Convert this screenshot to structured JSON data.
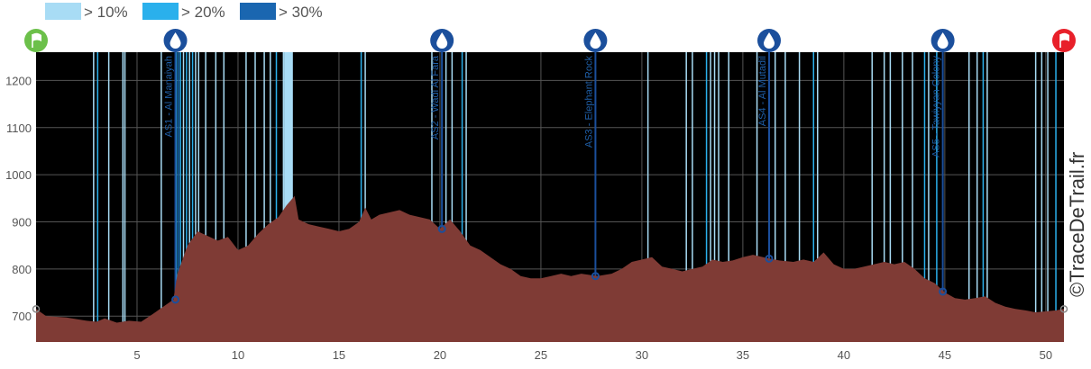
{
  "copyright": "©TraceDeTrail.fr",
  "colors": {
    "background": "#000000",
    "profile_fill": "#7f3b35",
    "steep_10": "#a8dcf5",
    "steep_20": "#2ab0ec",
    "steep_30": "#1a66b0",
    "marker_blue": "#1b4f9c",
    "start_flag": "#6cc04a",
    "finish_flag": "#e8202a",
    "grid": "#555555",
    "axis_text": "#555555"
  },
  "legend": [
    {
      "label": "> 10%",
      "color": "#a8dcf5"
    },
    {
      "label": "> 20%",
      "color": "#2ab0ec"
    },
    {
      "label": "> 30%",
      "color": "#1a66b0"
    }
  ],
  "chart_data": {
    "type": "area",
    "xlim": [
      0,
      50.9
    ],
    "ylim": [
      645,
      1260
    ],
    "x_ticks": [
      5,
      10,
      15,
      20,
      25,
      30,
      35,
      40,
      45,
      50
    ],
    "y_ticks": [
      700,
      800,
      900,
      1000,
      1100,
      1200
    ],
    "grid": true,
    "legend_position": "top-left",
    "profile": [
      [
        0,
        715
      ],
      [
        0.5,
        700
      ],
      [
        1.5,
        697
      ],
      [
        2.5,
        690
      ],
      [
        3,
        688
      ],
      [
        3.4,
        695
      ],
      [
        4,
        686
      ],
      [
        4.6,
        690
      ],
      [
        5.2,
        688
      ],
      [
        5.8,
        705
      ],
      [
        6.3,
        720
      ],
      [
        6.8,
        735
      ],
      [
        7.0,
        790
      ],
      [
        7.5,
        850
      ],
      [
        8.0,
        880
      ],
      [
        8.5,
        870
      ],
      [
        9.0,
        860
      ],
      [
        9.5,
        868
      ],
      [
        10.0,
        840
      ],
      [
        10.5,
        850
      ],
      [
        11.0,
        875
      ],
      [
        11.5,
        895
      ],
      [
        12.0,
        910
      ],
      [
        12.4,
        935
      ],
      [
        12.8,
        955
      ],
      [
        13.0,
        905
      ],
      [
        13.5,
        895
      ],
      [
        14.0,
        890
      ],
      [
        14.5,
        885
      ],
      [
        15.0,
        880
      ],
      [
        15.5,
        885
      ],
      [
        16.0,
        900
      ],
      [
        16.3,
        930
      ],
      [
        16.6,
        905
      ],
      [
        17.0,
        915
      ],
      [
        17.5,
        920
      ],
      [
        18.0,
        925
      ],
      [
        18.5,
        915
      ],
      [
        19.0,
        910
      ],
      [
        19.5,
        905
      ],
      [
        20.0,
        885
      ],
      [
        20.5,
        905
      ],
      [
        21.0,
        880
      ],
      [
        21.5,
        850
      ],
      [
        22.0,
        840
      ],
      [
        22.5,
        825
      ],
      [
        23.0,
        810
      ],
      [
        23.5,
        800
      ],
      [
        24.0,
        785
      ],
      [
        24.5,
        780
      ],
      [
        25.0,
        780
      ],
      [
        25.5,
        785
      ],
      [
        26.0,
        790
      ],
      [
        26.5,
        785
      ],
      [
        27.0,
        790
      ],
      [
        27.8,
        785
      ],
      [
        28.5,
        790
      ],
      [
        29.0,
        800
      ],
      [
        29.5,
        815
      ],
      [
        30.0,
        820
      ],
      [
        30.5,
        825
      ],
      [
        31.0,
        805
      ],
      [
        31.5,
        800
      ],
      [
        32.0,
        795
      ],
      [
        32.5,
        800
      ],
      [
        33.0,
        805
      ],
      [
        33.5,
        820
      ],
      [
        34.0,
        815
      ],
      [
        34.5,
        818
      ],
      [
        35.0,
        825
      ],
      [
        35.5,
        830
      ],
      [
        36.0,
        825
      ],
      [
        36.3,
        822
      ],
      [
        36.8,
        818
      ],
      [
        37.5,
        815
      ],
      [
        38.0,
        820
      ],
      [
        38.5,
        815
      ],
      [
        39.0,
        835
      ],
      [
        39.5,
        810
      ],
      [
        40.0,
        800
      ],
      [
        40.5,
        800
      ],
      [
        41.0,
        805
      ],
      [
        41.5,
        810
      ],
      [
        42.0,
        815
      ],
      [
        42.5,
        810
      ],
      [
        43.0,
        815
      ],
      [
        43.5,
        800
      ],
      [
        44.0,
        780
      ],
      [
        44.5,
        770
      ],
      [
        45.0,
        750
      ],
      [
        45.5,
        738
      ],
      [
        46.0,
        735
      ],
      [
        46.5,
        738
      ],
      [
        47.0,
        742
      ],
      [
        47.5,
        728
      ],
      [
        48.0,
        720
      ],
      [
        48.5,
        715
      ],
      [
        49.0,
        712
      ],
      [
        49.5,
        708
      ],
      [
        50.0,
        710
      ],
      [
        50.5,
        712
      ],
      [
        50.9,
        715
      ]
    ],
    "steep_segments": [
      [
        2.85,
        1
      ],
      [
        3.05,
        2
      ],
      [
        3.6,
        1
      ],
      [
        4.3,
        1
      ],
      [
        4.4,
        1
      ],
      [
        6.2,
        1
      ],
      [
        6.95,
        2
      ],
      [
        7.05,
        3
      ],
      [
        7.15,
        2
      ],
      [
        7.3,
        1
      ],
      [
        7.45,
        2
      ],
      [
        7.6,
        1
      ],
      [
        7.75,
        2
      ],
      [
        7.9,
        1
      ],
      [
        8.05,
        1
      ],
      [
        8.4,
        1
      ],
      [
        8.9,
        1
      ],
      [
        9.3,
        1
      ],
      [
        10.4,
        1
      ],
      [
        10.85,
        1
      ],
      [
        11.3,
        1
      ],
      [
        11.6,
        1
      ],
      [
        11.9,
        2
      ],
      [
        12.25,
        1
      ],
      [
        12.35,
        1
      ],
      [
        12.45,
        1
      ],
      [
        12.55,
        1
      ],
      [
        12.65,
        1
      ],
      [
        16.1,
        2
      ],
      [
        16.3,
        1
      ],
      [
        19.6,
        1
      ],
      [
        20.1,
        2
      ],
      [
        20.3,
        1
      ],
      [
        20.6,
        1
      ],
      [
        21.1,
        2
      ],
      [
        21.3,
        1
      ],
      [
        30.3,
        1
      ],
      [
        32.2,
        1
      ],
      [
        32.5,
        1
      ],
      [
        33.2,
        2
      ],
      [
        33.4,
        1
      ],
      [
        33.6,
        1
      ],
      [
        33.8,
        1
      ],
      [
        34.3,
        1
      ],
      [
        35.7,
        1
      ],
      [
        36.6,
        1
      ],
      [
        37.1,
        1
      ],
      [
        37.8,
        1
      ],
      [
        38.5,
        2
      ],
      [
        38.7,
        1
      ],
      [
        41.4,
        1
      ],
      [
        42.0,
        1
      ],
      [
        42.3,
        1
      ],
      [
        42.9,
        1
      ],
      [
        43.4,
        1
      ],
      [
        44.0,
        2
      ],
      [
        44.2,
        1
      ],
      [
        44.6,
        2
      ],
      [
        46.2,
        1
      ],
      [
        46.6,
        1
      ],
      [
        46.9,
        2
      ],
      [
        47.1,
        1
      ],
      [
        49.5,
        1
      ],
      [
        49.8,
        1
      ],
      [
        50.1,
        1
      ],
      [
        50.5,
        2
      ]
    ],
    "aid_stations": [
      {
        "label": "AS1 - Al Manaiyah",
        "x": 6.9,
        "y": 735
      },
      {
        "label": "AS2 - Wadi Al Fara",
        "x": 20.1,
        "y": 885
      },
      {
        "label": "AS3 - Elephant Rock",
        "x": 27.7,
        "y": 785
      },
      {
        "label": "AS4 - Al Mutadil",
        "x": 36.3,
        "y": 822
      },
      {
        "label": "AS5 - Tawiyyan Colony",
        "x": 44.9,
        "y": 752
      }
    ],
    "start": {
      "x": 0,
      "y": 715
    },
    "finish": {
      "x": 50.9,
      "y": 715
    }
  }
}
